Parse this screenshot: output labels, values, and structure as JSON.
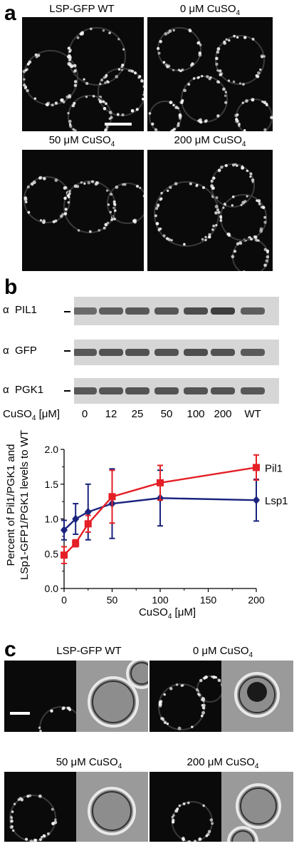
{
  "panel_a": {
    "letter": "a",
    "images": [
      {
        "label_main": "LSP-GFP WT",
        "label_sub": ""
      },
      {
        "label_main": "0 μM CuSO",
        "label_sub": "4"
      },
      {
        "label_main": "50 μM CuSO",
        "label_sub": "4"
      },
      {
        "label_main": "200 μM CuSO",
        "label_sub": "4"
      }
    ]
  },
  "panel_b": {
    "letter": "b",
    "blots": [
      {
        "alpha": "α",
        "name": "PIL1"
      },
      {
        "alpha": "α",
        "name": "GFP"
      },
      {
        "alpha": "α",
        "name": "PGK1"
      }
    ],
    "lane_header_main": "CuSO",
    "lane_header_sub": "4",
    "lane_header_unit": " [μM]",
    "lanes": [
      "0",
      "12",
      "25",
      "50",
      "100",
      "200",
      "WT"
    ]
  },
  "chart_data": {
    "type": "line",
    "ylabel_line1": "Percent of Pil1/PGK1 and",
    "ylabel_line2": "LSp1-GFP1/PGK1 levels to WT",
    "xlabel_main": "CuSO",
    "xlabel_sub": "4",
    "xlabel_unit": " [μM]",
    "xlim": [
      0,
      200
    ],
    "ylim": [
      0,
      2.0
    ],
    "xticks": [
      0,
      50,
      100,
      150,
      200
    ],
    "yticks": [
      0.0,
      0.5,
      1.0,
      1.5,
      2.0
    ],
    "ytick_labels": [
      "0.0",
      "0.5",
      "1.0",
      "1.5",
      "2.0"
    ],
    "xtick_labels": [
      "0",
      "50",
      "100",
      "150",
      "200"
    ],
    "series": [
      {
        "name": "Pil1",
        "color": "#e41f26",
        "marker": "square",
        "x": [
          0,
          12,
          25,
          50,
          100,
          200
        ],
        "y": [
          0.48,
          0.65,
          0.93,
          1.32,
          1.52,
          1.74
        ],
        "err": [
          0.12,
          0.05,
          0.12,
          0.38,
          0.25,
          0.18
        ]
      },
      {
        "name": "Lsp1",
        "color": "#1a237e",
        "marker": "diamond",
        "x": [
          0,
          12,
          25,
          50,
          100,
          200
        ],
        "y": [
          0.84,
          1.0,
          1.1,
          1.22,
          1.3,
          1.27
        ],
        "err": [
          0.14,
          0.22,
          0.4,
          0.5,
          0.4,
          0.3
        ]
      }
    ]
  },
  "panel_c": {
    "letter": "c",
    "images": [
      {
        "label_main": "LSP-GFP WT",
        "label_sub": ""
      },
      {
        "label_main": "0 μM CuSO",
        "label_sub": "4"
      },
      {
        "label_main": "50 μM CuSO",
        "label_sub": "4"
      },
      {
        "label_main": "200 μM CuSO",
        "label_sub": "4"
      }
    ]
  },
  "colors": {
    "pil1": "#e41f26",
    "lsp1": "#1a237e"
  }
}
